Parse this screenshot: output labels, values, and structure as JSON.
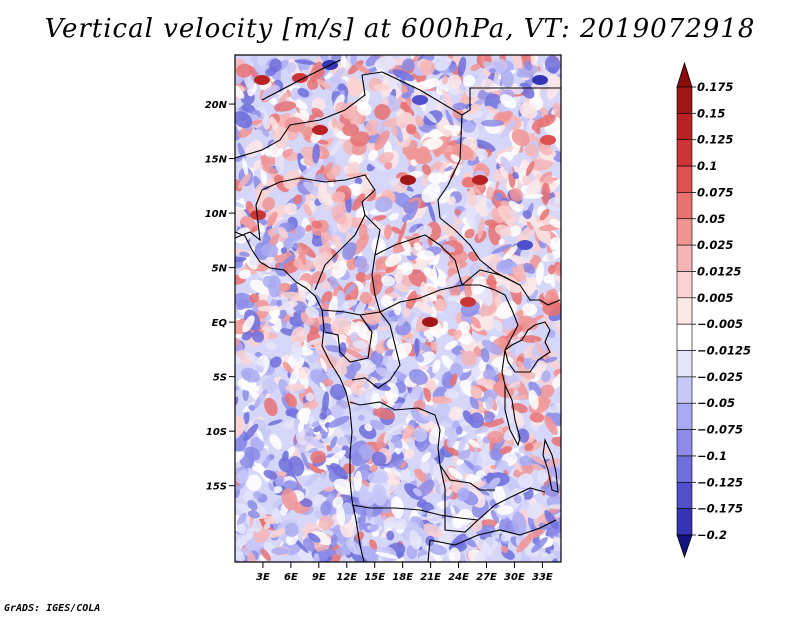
{
  "title": "Vertical velocity [m/s] at 600hPa, VT: 2019072918",
  "footer": "GrADS: IGES/COLA",
  "map": {
    "lon_range": [
      0,
      35
    ],
    "lat_range": [
      -22,
      24.5
    ],
    "lat_ticks": [
      {
        "value": 20,
        "label": "20N"
      },
      {
        "value": 15,
        "label": "15N"
      },
      {
        "value": 10,
        "label": "10N"
      },
      {
        "value": 5,
        "label": "5N"
      },
      {
        "value": 0,
        "label": "EQ"
      },
      {
        "value": -5,
        "label": "5S"
      },
      {
        "value": -10,
        "label": "10S"
      },
      {
        "value": -15,
        "label": "15S"
      }
    ],
    "lon_ticks": [
      {
        "value": 3,
        "label": "3E"
      },
      {
        "value": 6,
        "label": "6E"
      },
      {
        "value": 9,
        "label": "9E"
      },
      {
        "value": 12,
        "label": "12E"
      },
      {
        "value": 15,
        "label": "15E"
      },
      {
        "value": 18,
        "label": "18E"
      },
      {
        "value": 21,
        "label": "21E"
      },
      {
        "value": 24,
        "label": "24E"
      },
      {
        "value": 27,
        "label": "27E"
      },
      {
        "value": 30,
        "label": "30E"
      },
      {
        "value": 33,
        "label": "33E"
      }
    ]
  },
  "colorbar": {
    "levels": [
      {
        "label": "0.175",
        "color": "#a01515"
      },
      {
        "label": "0.15",
        "color": "#b82222"
      },
      {
        "label": "0.125",
        "color": "#cc3535"
      },
      {
        "label": "0.1",
        "color": "#dd5050"
      },
      {
        "label": "0.075",
        "color": "#e87272"
      },
      {
        "label": "0.05",
        "color": "#f09494"
      },
      {
        "label": "0.025",
        "color": "#f6b5b5"
      },
      {
        "label": "0.0125",
        "color": "#fad2d2"
      },
      {
        "label": "0.005",
        "color": "#fde8e8"
      },
      {
        "label": "−0.005",
        "color": "#ffffff"
      },
      {
        "label": "−0.0125",
        "color": "#e4e4fc"
      },
      {
        "label": "−0.025",
        "color": "#c8c8f8"
      },
      {
        "label": "−0.05",
        "color": "#aaaaf2"
      },
      {
        "label": "−0.075",
        "color": "#8c8ce8"
      },
      {
        "label": "−0.1",
        "color": "#6e6edc"
      },
      {
        "label": "−0.125",
        "color": "#5050cc"
      },
      {
        "label": "−0.175",
        "color": "#3434b4"
      },
      {
        "label": "−0.2",
        "color": "#202098"
      }
    ],
    "top_triangle_color": "#8c0c0c",
    "bottom_triangle_color": "#141480"
  }
}
